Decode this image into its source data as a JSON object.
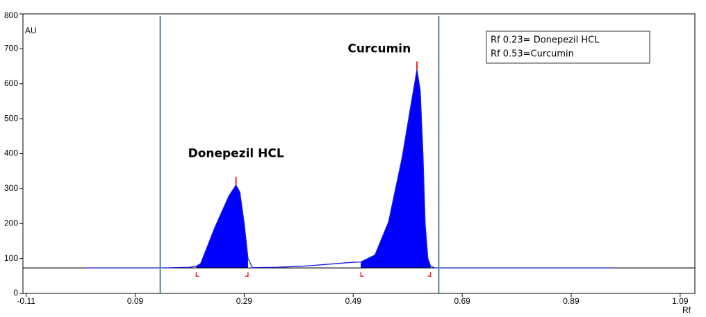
{
  "chart_data": {
    "type": "line",
    "x_label": "Rf",
    "y_label": "AU",
    "x": [
      0.0,
      0.14,
      0.16,
      0.19,
      0.202,
      0.21,
      0.236,
      0.262,
      0.275,
      0.282,
      0.29,
      0.297,
      0.305,
      0.35,
      0.4,
      0.44,
      0.48,
      0.504,
      0.53,
      0.555,
      0.58,
      0.595,
      0.607,
      0.613,
      0.618,
      0.622,
      0.627,
      0.632,
      0.64,
      0.7,
      0.8,
      0.9,
      0.97
    ],
    "series": [
      {
        "color": "#1a1ae6",
        "values": [
          73,
          73,
          74,
          75,
          78,
          85,
          188,
          279,
          310,
          290,
          200,
          100,
          74,
          75,
          78,
          83,
          88,
          90,
          110,
          205,
          390,
          530,
          640,
          580,
          400,
          200,
          100,
          78,
          73,
          73,
          73,
          73,
          73
        ]
      }
    ],
    "fill_color": "#0000ff",
    "peaks": [
      {
        "from": 0.202,
        "to": 0.297
      },
      {
        "from": 0.504,
        "to": 0.632
      }
    ],
    "peak_color": "#ff2020",
    "baseline": 73,
    "baseline_color": "#000000",
    "vlines": [
      0.136,
      0.647
    ],
    "vline_color": "#4a8c96",
    "xlim": [
      -0.116,
      1.117
    ],
    "ylim": [
      0,
      800
    ],
    "xticks": [
      -0.11,
      0.09,
      0.29,
      0.49,
      0.69,
      0.89,
      1.09
    ],
    "yticks": [
      0,
      100,
      200,
      300,
      400,
      500,
      600,
      700,
      800
    ],
    "annotations": [
      {
        "text": "Donepezil HCL",
        "x": 0.275,
        "y": 400
      },
      {
        "text": "Curcumin",
        "x": 0.48,
        "y": 700
      }
    ],
    "legend": [
      "Rf 0.23= Donepezil HCL",
      "Rf 0.53=Curcumin"
    ]
  }
}
